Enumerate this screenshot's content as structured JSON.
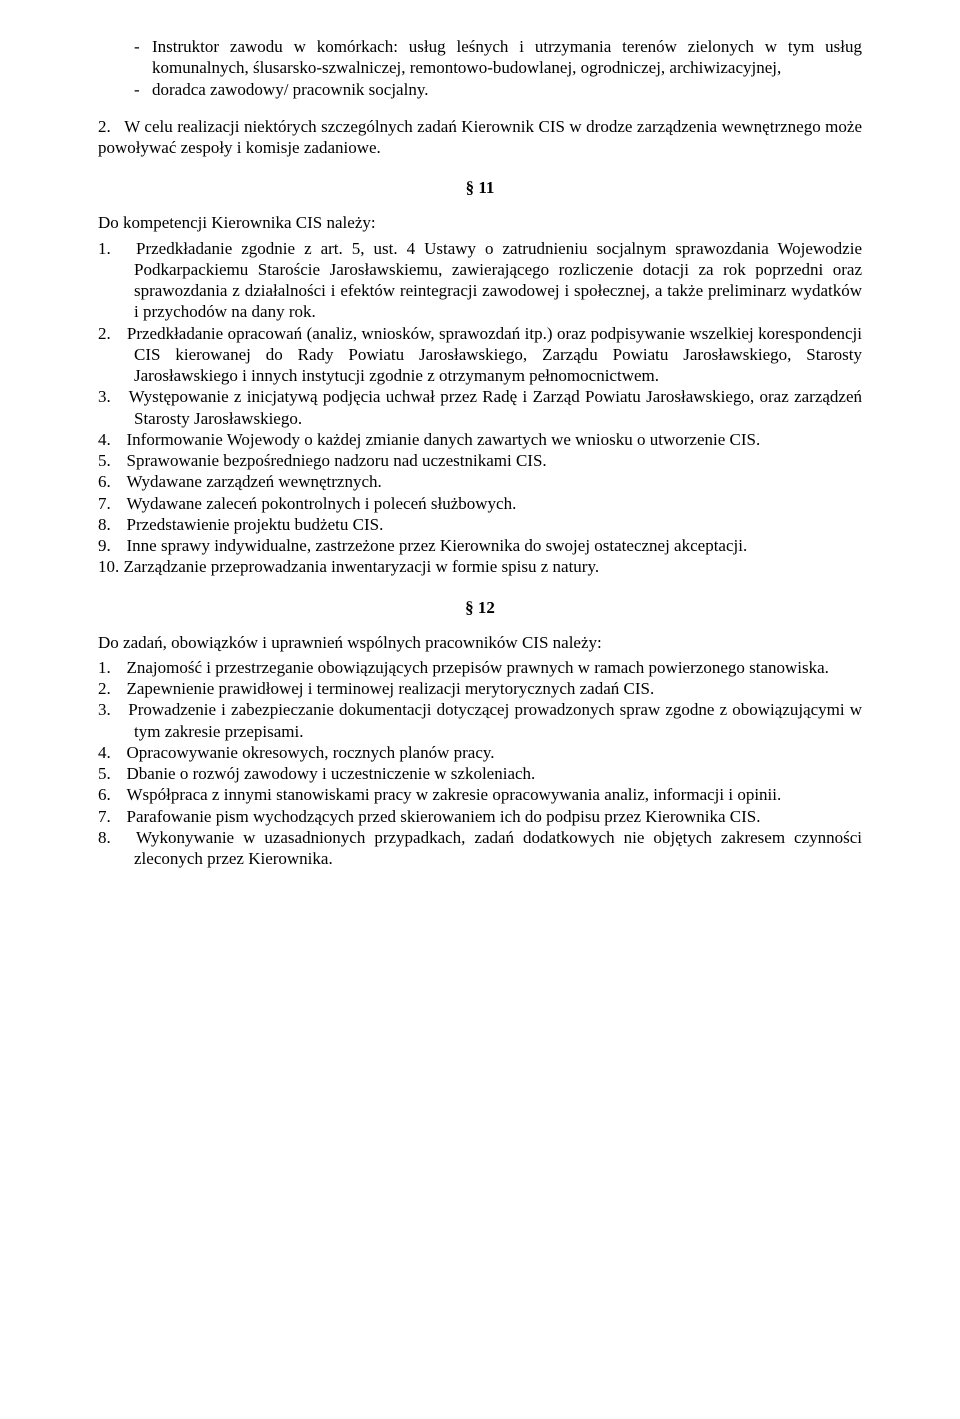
{
  "top_list": {
    "items": [
      "Instruktor zawodu w komórkach: usług leśnych i utrzymania terenów zielonych w tym usług komunalnych, ślusarsko-szwalniczej, remontowo-budowlanej, ogrodniczej, archiwizacyjnej,",
      "doradca zawodowy/ pracownik socjalny."
    ]
  },
  "para2_num": "2.",
  "para2_text": "W celu realizacji niektórych szczególnych zadań Kierownik CIS w drodze zarządzenia wewnętrznego może powoływać zespoły i komisje zadaniowe.",
  "s11": {
    "mark": "§ 11",
    "intro": "Do kompetencji Kierownika CIS należy:",
    "items": [
      "Przedkładanie zgodnie z art. 5, ust. 4 Ustawy o zatrudnieniu socjalnym sprawozdania Wojewodzie Podkarpackiemu Staroście Jarosławskiemu, zawierającego rozliczenie dotacji za rok poprzedni oraz sprawozdania z działalności i efektów reintegracji zawodowej i społecznej, a także preliminarz wydatków i przychodów na dany rok.",
      "Przedkładanie opracowań (analiz, wniosków, sprawozdań itp.) oraz podpisywanie wszelkiej korespondencji CIS kierowanej do Rady Powiatu Jarosławskiego, Zarządu Powiatu Jarosławskiego, Starosty Jarosławskiego i innych instytucji zgodnie z otrzymanym pełnomocnictwem.",
      "Występowanie z inicjatywą podjęcia uchwał przez Radę i Zarząd Powiatu Jarosławskiego, oraz zarządzeń Starosty Jarosławskiego.",
      "Informowanie Wojewody o każdej zmianie danych zawartych we wniosku o utworzenie CIS.",
      "Sprawowanie bezpośredniego nadzoru nad uczestnikami CIS.",
      "Wydawane zarządzeń wewnętrznych.",
      "Wydawane zaleceń pokontrolnych i poleceń służbowych.",
      "Przedstawienie projektu budżetu CIS.",
      "Inne sprawy indywidualne, zastrzeżone przez Kierownika do swojej ostatecznej akceptacji.",
      "Zarządzanie przeprowadzania inwentaryzacji w formie spisu z natury."
    ]
  },
  "s12": {
    "mark": "§ 12",
    "intro": "Do zadań, obowiązków i uprawnień wspólnych pracowników CIS należy:",
    "items": [
      "Znajomość i przestrzeganie obowiązujących przepisów prawnych w ramach powierzonego stanowiska.",
      "Zapewnienie prawidłowej i terminowej realizacji merytorycznych zadań CIS.",
      "Prowadzenie i zabezpieczanie dokumentacji dotyczącej prowadzonych spraw zgodne z obowiązującymi w tym zakresie przepisami.",
      "Opracowywanie okresowych, rocznych planów pracy.",
      "Dbanie o rozwój zawodowy i uczestniczenie w szkoleniach.",
      "Współpraca z innymi stanowiskami pracy w zakresie opracowywania analiz, informacji i opinii.",
      "Parafowanie pism wychodzących przed skierowaniem ich do podpisu przez Kierownika CIS.",
      "Wykonywanie w uzasadnionych przypadkach, zadań dodatkowych nie objętych zakresem czynności zleconych przez Kierownika."
    ]
  }
}
